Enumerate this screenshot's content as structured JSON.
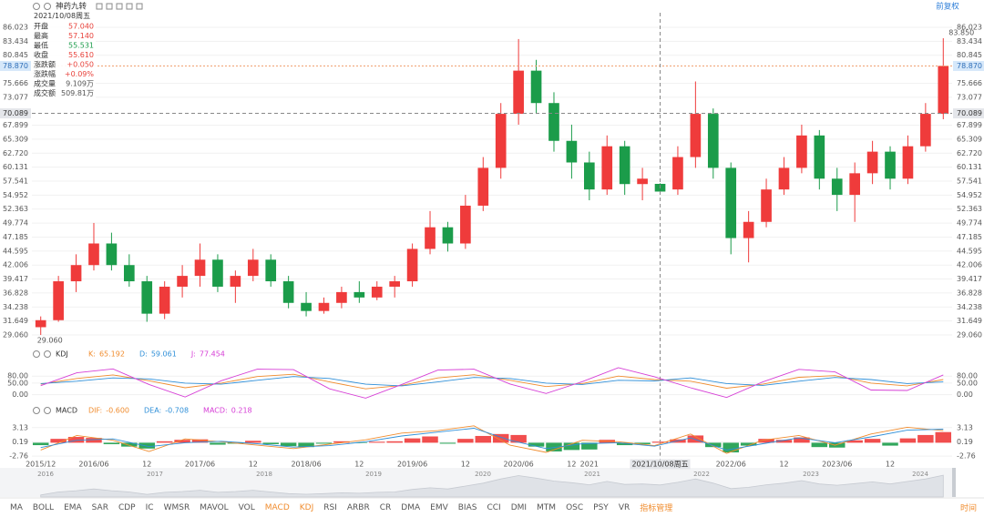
{
  "header": {
    "title": "神药九转",
    "adjust": "前复权"
  },
  "info": {
    "date": "2021/10/08周五",
    "rows": [
      {
        "label": "开盘",
        "value": "57.040",
        "color": "#e8413a"
      },
      {
        "label": "最高",
        "value": "57.140",
        "color": "#e8413a"
      },
      {
        "label": "最低",
        "value": "55.531",
        "color": "#1b9c4a"
      },
      {
        "label": "收盘",
        "value": "55.610",
        "color": "#e8413a"
      },
      {
        "label": "涨跌额",
        "value": "+0.050",
        "color": "#e8413a"
      },
      {
        "label": "涨跌幅",
        "value": "+0.09%",
        "color": "#e8413a"
      },
      {
        "label": "成交量",
        "value": "9.109万",
        "color": "#555555"
      },
      {
        "label": "成交额",
        "value": "509.81万",
        "color": "#555555"
      }
    ]
  },
  "chart_data": [
    {
      "type": "candlestick",
      "up_color": "#ef3b3b",
      "down_color": "#1b9c4a",
      "grid": true,
      "categories": [
        "2015/12",
        null,
        null,
        "2016/06",
        null,
        null,
        "12",
        null,
        null,
        "2017/06",
        null,
        null,
        "12",
        null,
        null,
        "2018/06",
        null,
        null,
        "12",
        null,
        null,
        "2019/06",
        null,
        null,
        "12",
        null,
        null,
        "2020/06",
        null,
        null,
        "12",
        "2021",
        null,
        null,
        null,
        "2021/10/08周五",
        null,
        null,
        null,
        "2022/06",
        null,
        null,
        "12",
        null,
        null,
        "2023/06",
        null,
        null,
        "12",
        null,
        null,
        null
      ],
      "candles": [
        [
          30.5,
          32.5,
          29.06,
          31.8
        ],
        [
          31.8,
          40,
          31.5,
          39
        ],
        [
          39,
          44,
          37,
          42
        ],
        [
          42,
          49.8,
          41,
          46
        ],
        [
          46,
          48,
          41,
          42
        ],
        [
          42,
          44,
          38,
          39
        ],
        [
          39,
          40,
          31.5,
          33
        ],
        [
          33,
          39,
          32,
          38
        ],
        [
          38,
          42,
          36,
          40
        ],
        [
          40,
          46,
          38,
          43
        ],
        [
          43,
          44,
          37,
          38
        ],
        [
          38,
          41,
          35,
          40
        ],
        [
          40,
          45,
          39,
          43
        ],
        [
          43,
          44,
          38,
          39
        ],
        [
          39,
          40,
          34,
          35
        ],
        [
          35,
          37,
          32.5,
          33.5
        ],
        [
          33.5,
          36,
          33,
          35
        ],
        [
          35,
          38,
          34,
          37
        ],
        [
          37,
          39,
          35,
          36
        ],
        [
          36,
          39,
          35.5,
          38
        ],
        [
          38,
          40,
          36,
          39
        ],
        [
          39,
          46,
          38,
          45
        ],
        [
          45,
          52,
          44,
          49
        ],
        [
          49,
          50,
          44.5,
          46
        ],
        [
          46,
          55,
          45,
          53
        ],
        [
          53,
          62,
          52,
          60
        ],
        [
          60,
          72,
          58,
          70
        ],
        [
          70,
          83.85,
          68,
          78
        ],
        [
          78,
          80,
          70,
          72
        ],
        [
          72,
          74,
          63,
          65
        ],
        [
          65,
          68,
          58,
          61
        ],
        [
          61,
          63,
          54,
          56
        ],
        [
          56,
          66,
          55,
          64
        ],
        [
          64,
          65,
          55,
          57
        ],
        [
          57,
          60,
          54,
          58
        ],
        [
          57.04,
          57.14,
          55.531,
          55.61
        ],
        [
          56,
          64,
          55,
          62
        ],
        [
          62,
          76,
          60,
          70
        ],
        [
          70,
          71,
          58,
          60
        ],
        [
          60,
          61,
          44,
          47
        ],
        [
          47,
          52,
          42.5,
          50
        ],
        [
          50,
          58,
          49,
          56
        ],
        [
          56,
          62,
          55,
          60
        ],
        [
          60,
          68,
          59,
          66
        ],
        [
          66,
          67,
          56,
          58
        ],
        [
          58,
          60,
          52,
          55
        ],
        [
          55,
          61,
          50,
          59
        ],
        [
          59,
          65,
          57,
          63
        ],
        [
          63,
          64,
          56,
          58
        ],
        [
          58,
          66,
          57,
          64
        ],
        [
          64,
          72,
          63,
          70
        ],
        [
          70,
          84,
          69,
          78.87
        ]
      ],
      "high_label": "83.850",
      "low_label": "29.060",
      "price_line": {
        "value": 78.87,
        "label": "78.870"
      },
      "crosshair": {
        "value": 70.089,
        "label": "70.089"
      },
      "ylim": [
        27.04,
        87.71
      ],
      "yticks": [
        86.023,
        83.434,
        80.845,
        75.666,
        73.077,
        67.899,
        65.309,
        {
          "value": 62.72,
          "label": "62.720"
        },
        60.131,
        57.541,
        54.952,
        52.363,
        49.774,
        47.185,
        44.595,
        42.006,
        39.417,
        36.828,
        34.238,
        31.649,
        {
          "value": 29.06,
          "label": "29.060"
        }
      ]
    },
    {
      "type": "line",
      "title": "KDJ",
      "grid": true,
      "ylim": [
        -25,
        120
      ],
      "yticks": [
        {
          "value": 80,
          "label": "80.00"
        },
        {
          "value": 50,
          "label": "50.00"
        },
        {
          "value": 0,
          "label": "0.00"
        }
      ],
      "series": [
        {
          "name": "K:",
          "color": "#f08c2e",
          "value_label": "65.192",
          "values": [
            45,
            70,
            85,
            60,
            30,
            50,
            78,
            88,
            55,
            25,
            40,
            72,
            86,
            62,
            35,
            48,
            80,
            65.192,
            58,
            28,
            45,
            75,
            82,
            50,
            38,
            65
          ]
        },
        {
          "name": "D:",
          "color": "#2f8fd8",
          "value_label": "59.061",
          "values": [
            48,
            58,
            72,
            68,
            50,
            45,
            62,
            78,
            70,
            45,
            38,
            55,
            74,
            70,
            50,
            44,
            62,
            59.061,
            72,
            48,
            40,
            58,
            74,
            65,
            48,
            55
          ]
        },
        {
          "name": "J:",
          "color": "#d63fd6",
          "value_label": "77.454",
          "values": [
            39,
            94,
            111,
            44,
            -10,
            60,
            110,
            108,
            25,
            -15,
            44,
            106,
            110,
            46,
            5,
            56,
            116,
            77.454,
            30,
            -12,
            55,
            109,
            98,
            20,
            18,
            85
          ]
        }
      ]
    },
    {
      "type": "macd",
      "title": "MACD",
      "grid": true,
      "ylim": [
        -3.5,
        4.97
      ],
      "yticks": [
        3.13,
        0.19,
        -2.76
      ],
      "series": [
        {
          "name": "DIF:",
          "color": "#f08c2e",
          "value_label": "-0.600",
          "values": [
            -1.5,
            1.5,
            0.5,
            -1.8,
            0.8,
            0.2,
            -0.5,
            -1.2,
            -0.3,
            0.6,
            2.0,
            2.5,
            3.5,
            -0.5,
            -2.0,
            0.5,
            0.2,
            -0.6,
            1.8,
            -2.2,
            0.5,
            1.5,
            -0.5,
            1.8,
            3.2,
            2.5
          ]
        },
        {
          "name": "DEA:",
          "color": "#2f8fd8",
          "value_label": "-0.708",
          "values": [
            -1.0,
            0.5,
            0.8,
            -0.8,
            0.0,
            0.3,
            -0.2,
            -0.9,
            -0.6,
            0.2,
            1.4,
            2.2,
            3.0,
            0.5,
            -1.2,
            -0.2,
            0.0,
            -0.708,
            1.0,
            -1.5,
            -0.2,
            1.0,
            0.0,
            1.2,
            2.6,
            2.8
          ]
        },
        {
          "name": "MACD:",
          "color": "#d63fd6",
          "type": "bar",
          "up_color": "#ef3b3b",
          "down_color": "#1b9c4a",
          "value_label": "0.218",
          "values": [
            -0.5,
            0.8,
            1.2,
            1.0,
            -0.3,
            -0.8,
            -1.2,
            0.3,
            0.6,
            0.7,
            -0.4,
            -0.2,
            0.4,
            -0.3,
            -0.7,
            -0.9,
            -0.2,
            0.3,
            -0.1,
            0.2,
            0.3,
            0.9,
            1.3,
            -0.2,
            0.8,
            1.4,
            1.8,
            1.6,
            -0.8,
            -1.8,
            -1.5,
            -1.4,
            0.6,
            -0.5,
            -0.3,
            0.218,
            0.7,
            1.5,
            -0.9,
            -2.0,
            -0.6,
            0.8,
            0.6,
            1.1,
            -0.9,
            -1.0,
            0.5,
            0.8,
            -0.6,
            0.9,
            1.6,
            2.2
          ]
        }
      ]
    }
  ],
  "navigator": {
    "labels": [
      "2016",
      "2017",
      "2018",
      "2019",
      "2020",
      "2021",
      "2022",
      "2023",
      "2024"
    ]
  },
  "toolbar": {
    "items": [
      {
        "label": "MA",
        "active": false
      },
      {
        "label": "BOLL",
        "active": false
      },
      {
        "label": "EMA",
        "active": false
      },
      {
        "label": "SAR",
        "active": false
      },
      {
        "label": "CDP",
        "active": false
      },
      {
        "label": "IC",
        "active": false
      },
      {
        "label": "WMSR",
        "active": false
      },
      {
        "label": "MAVOL",
        "active": false
      },
      {
        "label": "VOL",
        "active": false
      },
      {
        "label": "MACD",
        "active": true
      },
      {
        "label": "KDJ",
        "active": true
      },
      {
        "label": "RSI",
        "active": false
      },
      {
        "label": "ARBR",
        "active": false
      },
      {
        "label": "CR",
        "active": false
      },
      {
        "label": "DMA",
        "active": false
      },
      {
        "label": "EMV",
        "active": false
      },
      {
        "label": "BIAS",
        "active": false
      },
      {
        "label": "CCI",
        "active": false
      },
      {
        "label": "DMI",
        "active": false
      },
      {
        "label": "MTM",
        "active": false
      },
      {
        "label": "OSC",
        "active": false
      },
      {
        "label": "PSY",
        "active": false
      },
      {
        "label": "VR",
        "active": false
      },
      {
        "label": "指标管理",
        "active": true
      }
    ],
    "right": "时间"
  }
}
